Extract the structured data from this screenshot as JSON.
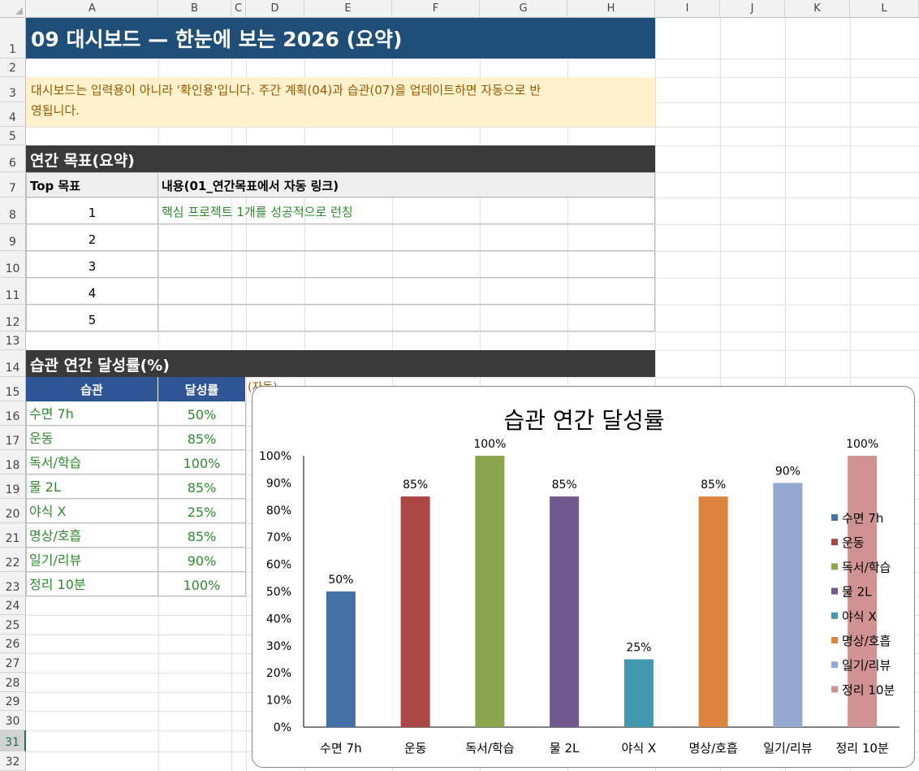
{
  "sheet": {
    "columns": [
      "A",
      "B",
      "C",
      "D",
      "E",
      "F",
      "G",
      "H",
      "I",
      "J",
      "K",
      "L"
    ],
    "rows": [
      "1",
      "2",
      "3",
      "4",
      "5",
      "6",
      "7",
      "8",
      "9",
      "10",
      "11",
      "12",
      "13",
      "14",
      "15",
      "16",
      "17",
      "18",
      "19",
      "20",
      "21",
      "22",
      "23",
      "24",
      "25",
      "26",
      "27",
      "28",
      "29",
      "30",
      "31",
      "32"
    ],
    "selected_row": "31"
  },
  "banner": {
    "title": "09 대시보드 — 한눈에 보는 2026 (요약)"
  },
  "note": {
    "line1": "대시보드는 입력용이 아니라 '확인용'입니다. 주간 계획(04)과 습관(07)을 업데이트하면 자동으로 반",
    "line2": "영됩니다."
  },
  "goals": {
    "section_title": "연간 목표(요약)",
    "header_top": "Top 목표",
    "header_content": "내용(01_연간목표에서 자동 링크)",
    "rows": [
      {
        "num": "1",
        "text": "핵심 프로젝트 1개를 성공적으로 런칭"
      },
      {
        "num": "2",
        "text": ""
      },
      {
        "num": "3",
        "text": ""
      },
      {
        "num": "4",
        "text": ""
      },
      {
        "num": "5",
        "text": ""
      }
    ]
  },
  "habits": {
    "section_title": "습관 연간 달성률(%)",
    "header_habit": "습관",
    "header_rate": "달성률",
    "auto_note": "(자동)",
    "rows": [
      {
        "name": "수면 7h",
        "rate": "50%"
      },
      {
        "name": "운동",
        "rate": "85%"
      },
      {
        "name": "독서/학습",
        "rate": "100%"
      },
      {
        "name": "물 2L",
        "rate": "85%"
      },
      {
        "name": "야식 X",
        "rate": "25%"
      },
      {
        "name": "명상/호흡",
        "rate": "85%"
      },
      {
        "name": "일기/리뷰",
        "rate": "90%"
      },
      {
        "name": "정리 10분",
        "rate": "100%"
      }
    ]
  },
  "chart_data": {
    "type": "bar",
    "title": "습관 연간 달성률",
    "categories": [
      "수면 7h",
      "운동",
      "독서/학습",
      "물 2L",
      "야식 X",
      "명상/호흡",
      "일기/리뷰",
      "정리 10분"
    ],
    "values": [
      50,
      85,
      100,
      85,
      25,
      85,
      90,
      100
    ],
    "data_labels": [
      "50%",
      "85%",
      "100%",
      "85%",
      "25%",
      "85%",
      "90%",
      "100%"
    ],
    "colors": [
      "#4472a8",
      "#aa4643",
      "#89a54e",
      "#71588f",
      "#4198af",
      "#db843d",
      "#93a9cf",
      "#d19392"
    ],
    "y_ticks": [
      "0%",
      "10%",
      "20%",
      "30%",
      "40%",
      "50%",
      "60%",
      "70%",
      "80%",
      "90%",
      "100%"
    ],
    "ylim": [
      0,
      100
    ],
    "legend": "right",
    "grid": false
  }
}
